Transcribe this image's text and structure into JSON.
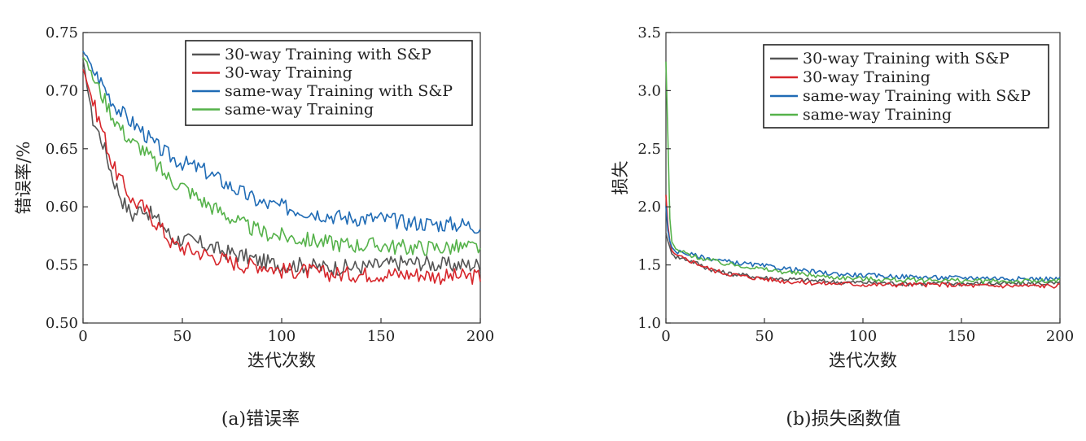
{
  "colors": {
    "s30sp": "#555555",
    "s30": "#d7262b",
    "ssp": "#1f6bb5",
    "ss": "#55b24a"
  },
  "legend_labels": [
    "30-way Training with S&P",
    "30-way Training",
    "same-way Training with S&P",
    "same-way Training"
  ],
  "chart_data": [
    {
      "type": "line",
      "caption": "(a)错误率",
      "xlabel": "迭代次数",
      "ylabel": "错误率/%",
      "xlim": [
        0,
        200
      ],
      "ylim": [
        0.5,
        0.75
      ],
      "xticks": [
        "0",
        "50",
        "100",
        "150",
        "200"
      ],
      "yticks": [
        "0.50",
        "0.55",
        "0.60",
        "0.65",
        "0.70",
        "0.75"
      ],
      "legend_position": "top-right",
      "grid": false,
      "series": [
        {
          "name": "30-way Training with S&P",
          "color_key": "s30sp",
          "points": [
            [
              0,
              0.725
            ],
            [
              5,
              0.675
            ],
            [
              10,
              0.655
            ],
            [
              15,
              0.625
            ],
            [
              20,
              0.605
            ],
            [
              25,
              0.592
            ],
            [
              30,
              0.6
            ],
            [
              35,
              0.592
            ],
            [
              40,
              0.585
            ],
            [
              45,
              0.572
            ],
            [
              50,
              0.572
            ],
            [
              60,
              0.568
            ],
            [
              70,
              0.562
            ],
            [
              80,
              0.558
            ],
            [
              90,
              0.553
            ],
            [
              100,
              0.55
            ],
            [
              110,
              0.55
            ],
            [
              120,
              0.548
            ],
            [
              130,
              0.548
            ],
            [
              140,
              0.548
            ],
            [
              150,
              0.55
            ],
            [
              160,
              0.552
            ],
            [
              170,
              0.552
            ],
            [
              180,
              0.55
            ],
            [
              190,
              0.55
            ],
            [
              200,
              0.55
            ]
          ]
        },
        {
          "name": "30-way Training",
          "color_key": "s30",
          "points": [
            [
              0,
              0.72
            ],
            [
              5,
              0.69
            ],
            [
              10,
              0.665
            ],
            [
              15,
              0.635
            ],
            [
              20,
              0.62
            ],
            [
              25,
              0.605
            ],
            [
              30,
              0.6
            ],
            [
              35,
              0.59
            ],
            [
              40,
              0.58
            ],
            [
              45,
              0.568
            ],
            [
              50,
              0.565
            ],
            [
              60,
              0.56
            ],
            [
              70,
              0.555
            ],
            [
              80,
              0.55
            ],
            [
              90,
              0.55
            ],
            [
              100,
              0.545
            ],
            [
              110,
              0.545
            ],
            [
              120,
              0.543
            ],
            [
              130,
              0.542
            ],
            [
              140,
              0.542
            ],
            [
              150,
              0.542
            ],
            [
              160,
              0.542
            ],
            [
              170,
              0.542
            ],
            [
              180,
              0.54
            ],
            [
              190,
              0.54
            ],
            [
              200,
              0.54
            ]
          ]
        },
        {
          "name": "same-way Training with S&P",
          "color_key": "ssp",
          "points": [
            [
              0,
              0.735
            ],
            [
              5,
              0.718
            ],
            [
              10,
              0.705
            ],
            [
              15,
              0.69
            ],
            [
              20,
              0.68
            ],
            [
              25,
              0.672
            ],
            [
              30,
              0.665
            ],
            [
              35,
              0.655
            ],
            [
              40,
              0.648
            ],
            [
              45,
              0.642
            ],
            [
              50,
              0.638
            ],
            [
              60,
              0.632
            ],
            [
              70,
              0.622
            ],
            [
              80,
              0.612
            ],
            [
              90,
              0.603
            ],
            [
              100,
              0.6
            ],
            [
              110,
              0.597
            ],
            [
              120,
              0.594
            ],
            [
              130,
              0.591
            ],
            [
              140,
              0.59
            ],
            [
              150,
              0.59
            ],
            [
              160,
              0.587
            ],
            [
              170,
              0.586
            ],
            [
              180,
              0.585
            ],
            [
              190,
              0.585
            ],
            [
              200,
              0.583
            ]
          ]
        },
        {
          "name": "same-way Training",
          "color_key": "ss",
          "points": [
            [
              0,
              0.73
            ],
            [
              5,
              0.712
            ],
            [
              10,
              0.695
            ],
            [
              15,
              0.678
            ],
            [
              20,
              0.665
            ],
            [
              25,
              0.655
            ],
            [
              30,
              0.65
            ],
            [
              35,
              0.64
            ],
            [
              40,
              0.63
            ],
            [
              45,
              0.622
            ],
            [
              50,
              0.618
            ],
            [
              60,
              0.605
            ],
            [
              70,
              0.595
            ],
            [
              80,
              0.585
            ],
            [
              90,
              0.578
            ],
            [
              100,
              0.575
            ],
            [
              110,
              0.572
            ],
            [
              120,
              0.57
            ],
            [
              130,
              0.568
            ],
            [
              140,
              0.567
            ],
            [
              150,
              0.567
            ],
            [
              160,
              0.565
            ],
            [
              170,
              0.565
            ],
            [
              180,
              0.565
            ],
            [
              190,
              0.565
            ],
            [
              200,
              0.565
            ]
          ]
        }
      ]
    },
    {
      "type": "line",
      "caption": "(b)损失函数值",
      "xlabel": "迭代次数",
      "ylabel": "损失",
      "xlim": [
        0,
        200
      ],
      "ylim": [
        1.0,
        3.5
      ],
      "xticks": [
        "0",
        "50",
        "100",
        "150",
        "200"
      ],
      "yticks": [
        "1.0",
        "1.5",
        "2.0",
        "2.5",
        "3.0",
        "3.5"
      ],
      "legend_position": "top-right",
      "grid": false,
      "series": [
        {
          "name": "30-way Training with S&P",
          "color_key": "s30sp",
          "points": [
            [
              0,
              1.78
            ],
            [
              1,
              1.7
            ],
            [
              2,
              1.65
            ],
            [
              3,
              1.6
            ],
            [
              5,
              1.57
            ],
            [
              10,
              1.55
            ],
            [
              15,
              1.52
            ],
            [
              20,
              1.48
            ],
            [
              25,
              1.45
            ],
            [
              30,
              1.43
            ],
            [
              40,
              1.41
            ],
            [
              50,
              1.39
            ],
            [
              60,
              1.38
            ],
            [
              70,
              1.37
            ],
            [
              80,
              1.36
            ],
            [
              90,
              1.35
            ],
            [
              100,
              1.35
            ],
            [
              120,
              1.34
            ],
            [
              140,
              1.34
            ],
            [
              160,
              1.34
            ],
            [
              180,
              1.34
            ],
            [
              200,
              1.34
            ]
          ]
        },
        {
          "name": "30-way Training",
          "color_key": "s30",
          "points": [
            [
              0,
              2.1
            ],
            [
              1,
              1.85
            ],
            [
              2,
              1.7
            ],
            [
              3,
              1.62
            ],
            [
              5,
              1.58
            ],
            [
              10,
              1.55
            ],
            [
              15,
              1.52
            ],
            [
              20,
              1.48
            ],
            [
              25,
              1.45
            ],
            [
              30,
              1.43
            ],
            [
              40,
              1.4
            ],
            [
              50,
              1.38
            ],
            [
              60,
              1.36
            ],
            [
              70,
              1.35
            ],
            [
              80,
              1.34
            ],
            [
              90,
              1.34
            ],
            [
              100,
              1.33
            ],
            [
              120,
              1.33
            ],
            [
              140,
              1.33
            ],
            [
              160,
              1.32
            ],
            [
              180,
              1.32
            ],
            [
              200,
              1.32
            ]
          ]
        },
        {
          "name": "same-way Training with S&P",
          "color_key": "ssp",
          "points": [
            [
              0,
              2.0
            ],
            [
              1,
              1.8
            ],
            [
              2,
              1.7
            ],
            [
              3,
              1.65
            ],
            [
              5,
              1.62
            ],
            [
              10,
              1.6
            ],
            [
              15,
              1.58
            ],
            [
              20,
              1.56
            ],
            [
              25,
              1.55
            ],
            [
              30,
              1.53
            ],
            [
              40,
              1.51
            ],
            [
              50,
              1.49
            ],
            [
              60,
              1.47
            ],
            [
              70,
              1.45
            ],
            [
              80,
              1.43
            ],
            [
              90,
              1.42
            ],
            [
              100,
              1.41
            ],
            [
              120,
              1.4
            ],
            [
              140,
              1.39
            ],
            [
              160,
              1.39
            ],
            [
              180,
              1.38
            ],
            [
              200,
              1.38
            ]
          ]
        },
        {
          "name": "same-way Training",
          "color_key": "ss",
          "points": [
            [
              0,
              3.25
            ],
            [
              1,
              2.6
            ],
            [
              2,
              1.9
            ],
            [
              3,
              1.7
            ],
            [
              5,
              1.63
            ],
            [
              10,
              1.6
            ],
            [
              15,
              1.57
            ],
            [
              20,
              1.55
            ],
            [
              25,
              1.53
            ],
            [
              30,
              1.51
            ],
            [
              40,
              1.49
            ],
            [
              50,
              1.46
            ],
            [
              60,
              1.44
            ],
            [
              70,
              1.42
            ],
            [
              80,
              1.4
            ],
            [
              90,
              1.39
            ],
            [
              100,
              1.38
            ],
            [
              120,
              1.37
            ],
            [
              140,
              1.37
            ],
            [
              160,
              1.36
            ],
            [
              180,
              1.36
            ],
            [
              200,
              1.36
            ]
          ]
        }
      ]
    }
  ]
}
